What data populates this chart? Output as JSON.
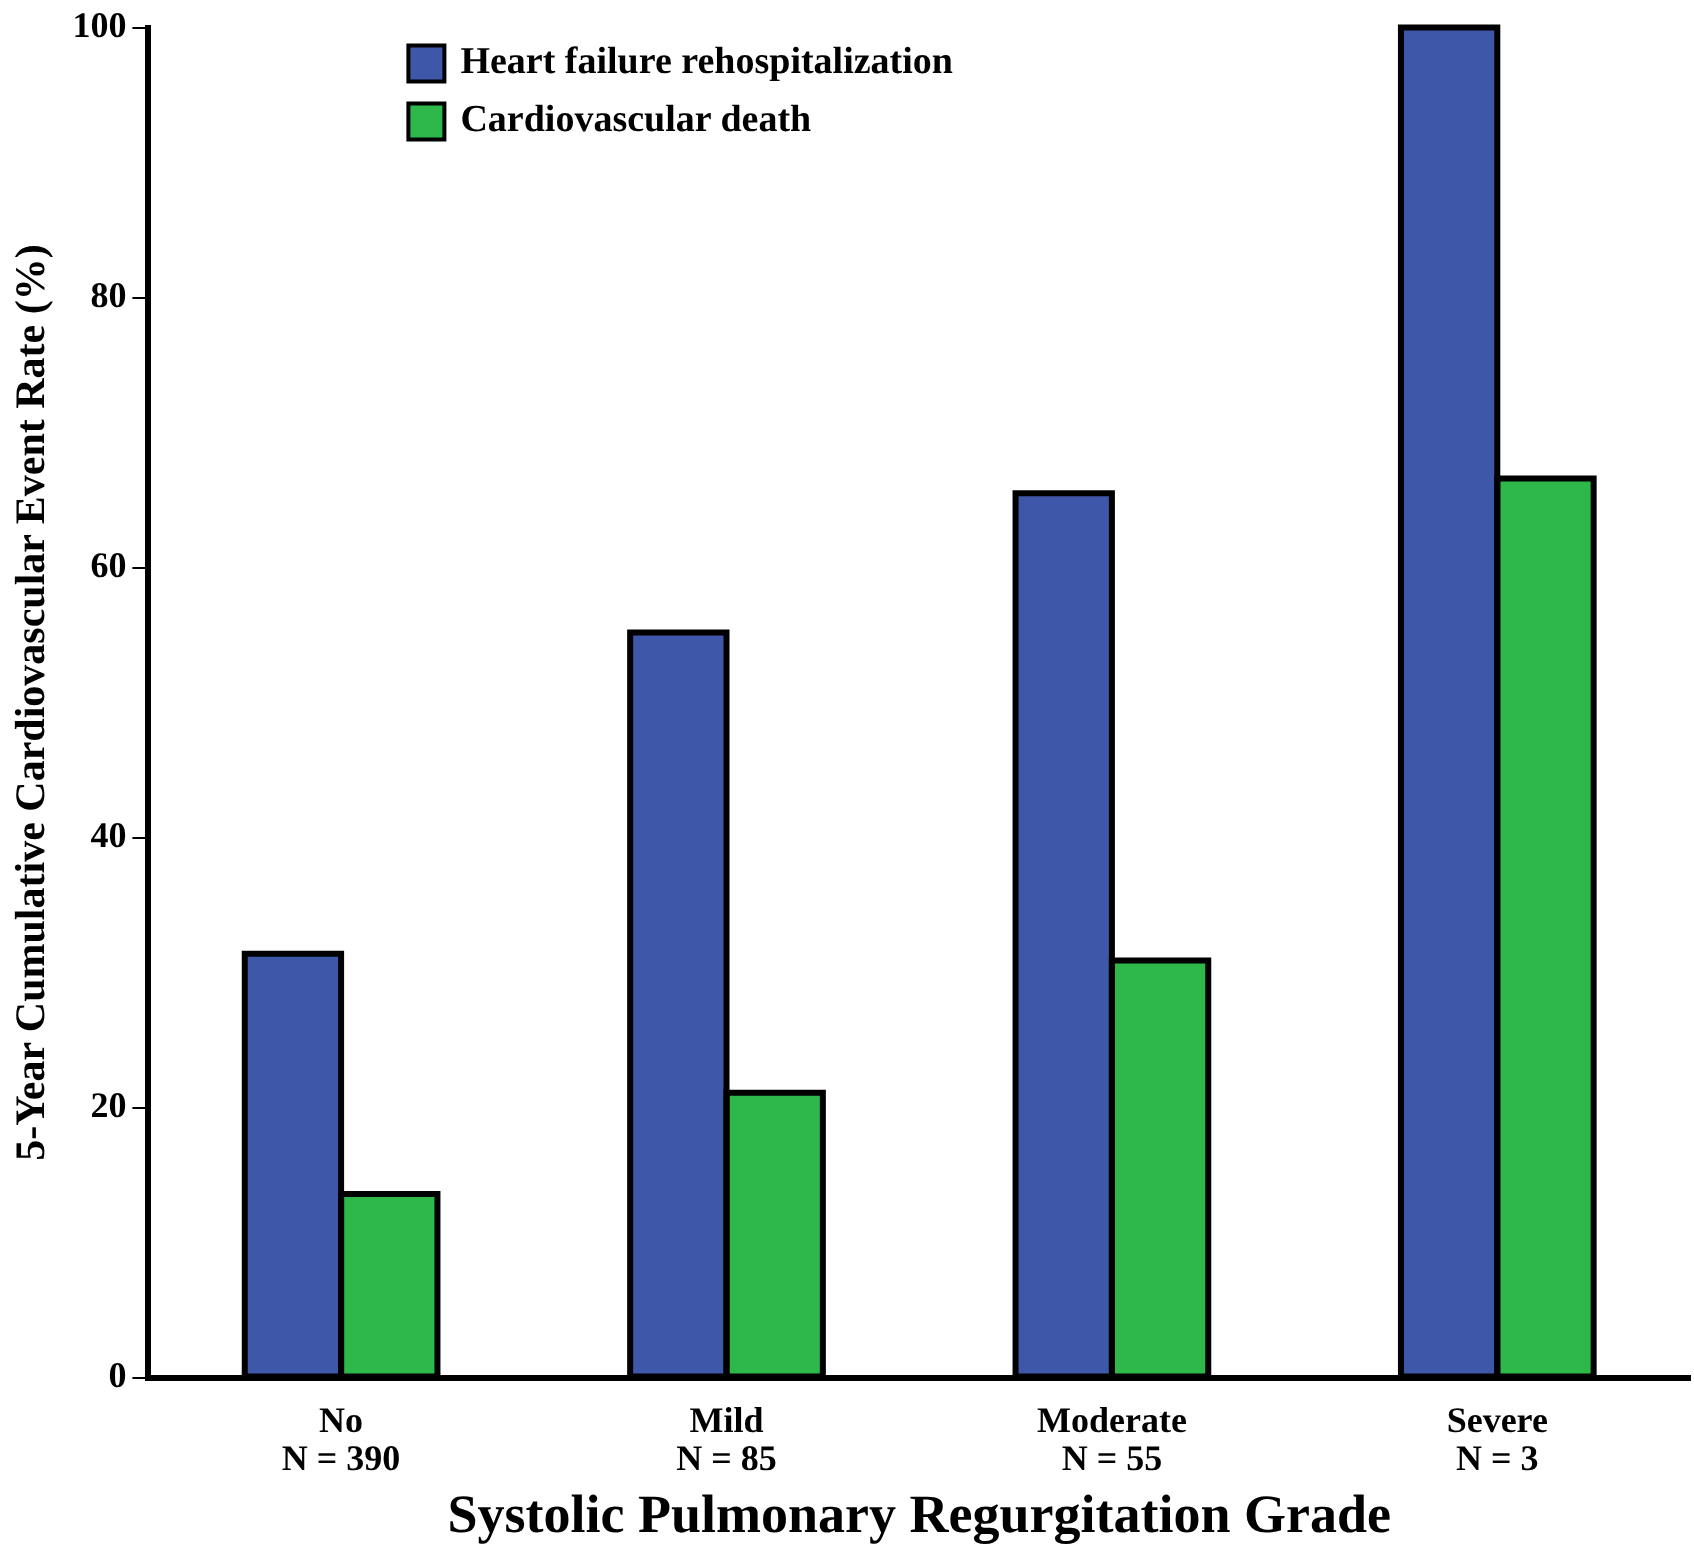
{
  "chart_data": {
    "type": "bar",
    "xlabel": "Systolic Pulmonary Regurgitation Grade",
    "ylabel": "5-Year Cumulative Cardiovascular Event Rate (%)",
    "categories": [
      "No\nN = 390",
      "Mild\nN = 85",
      "Moderate\nN = 55",
      "Severe\nN = 3"
    ],
    "series": [
      {
        "name": "Heart failure rehospitalization",
        "color": "#3f57a9",
        "values": [
          31.4,
          55.2,
          65.5,
          100
        ]
      },
      {
        "name": "Cardiovascular death",
        "color": "#2fb84a",
        "values": [
          13.6,
          21.1,
          30.9,
          66.6
        ]
      }
    ],
    "ylim": [
      0,
      100
    ],
    "yticks": [
      0,
      20,
      40,
      60,
      80,
      100
    ],
    "grid": false,
    "legend": "top left"
  }
}
